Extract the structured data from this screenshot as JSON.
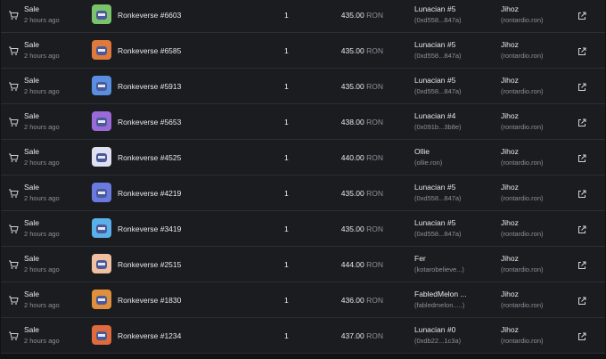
{
  "table": {
    "rows": [
      {
        "event": "Sale",
        "time": "2 hours ago",
        "item": "Ronkeverse #6603",
        "quantity": 1,
        "price": "435.00",
        "currency": "RON",
        "from": {
          "name": "Lunacian #5",
          "address": "(0xd558...847a)"
        },
        "to": {
          "name": "Jihoz",
          "address": "(rontardio.ron)"
        }
      },
      {
        "event": "Sale",
        "time": "2 hours ago",
        "item": "Ronkeverse #6585",
        "quantity": 1,
        "price": "435.00",
        "currency": "RON",
        "from": {
          "name": "Lunacian #5",
          "address": "(0xd558...847a)"
        },
        "to": {
          "name": "Jihoz",
          "address": "(rontardio.ron)"
        }
      },
      {
        "event": "Sale",
        "time": "2 hours ago",
        "item": "Ronkeverse #5913",
        "quantity": 1,
        "price": "435.00",
        "currency": "RON",
        "from": {
          "name": "Lunacian #5",
          "address": "(0xd558...847a)"
        },
        "to": {
          "name": "Jihoz",
          "address": "(rontardio.ron)"
        }
      },
      {
        "event": "Sale",
        "time": "2 hours ago",
        "item": "Ronkeverse #5653",
        "quantity": 1,
        "price": "438.00",
        "currency": "RON",
        "from": {
          "name": "Lunacian #4",
          "address": "(0x091b...3b8e)"
        },
        "to": {
          "name": "Jihoz",
          "address": "(rontardio.ron)"
        }
      },
      {
        "event": "Sale",
        "time": "2 hours ago",
        "item": "Ronkeverse #4525",
        "quantity": 1,
        "price": "440.00",
        "currency": "RON",
        "from": {
          "name": "Ollie",
          "address": "(ollie.ron)"
        },
        "to": {
          "name": "Jihoz",
          "address": "(rontardio.ron)"
        }
      },
      {
        "event": "Sale",
        "time": "2 hours ago",
        "item": "Ronkeverse #4219",
        "quantity": 1,
        "price": "435.00",
        "currency": "RON",
        "from": {
          "name": "Lunacian #5",
          "address": "(0xd558...847a)"
        },
        "to": {
          "name": "Jihoz",
          "address": "(rontardio.ron)"
        }
      },
      {
        "event": "Sale",
        "time": "2 hours ago",
        "item": "Ronkeverse #3419",
        "quantity": 1,
        "price": "435.00",
        "currency": "RON",
        "from": {
          "name": "Lunacian #5",
          "address": "(0xd558...847a)"
        },
        "to": {
          "name": "Jihoz",
          "address": "(rontardio.ron)"
        }
      },
      {
        "event": "Sale",
        "time": "2 hours ago",
        "item": "Ronkeverse #2515",
        "quantity": 1,
        "price": "444.00",
        "currency": "RON",
        "from": {
          "name": "Fer",
          "address": "(kotarobelieve...)"
        },
        "to": {
          "name": "Jihoz",
          "address": "(rontardio.ron)"
        }
      },
      {
        "event": "Sale",
        "time": "2 hours ago",
        "item": "Ronkeverse #1830",
        "quantity": 1,
        "price": "436.00",
        "currency": "RON",
        "from": {
          "name": "FabledMelon ...",
          "address": "(fabledmelon.....)"
        },
        "to": {
          "name": "Jihoz",
          "address": "(rontardio.ron)"
        }
      },
      {
        "event": "Sale",
        "time": "2 hours ago",
        "item": "Ronkeverse #1234",
        "quantity": 1,
        "price": "437.00",
        "currency": "RON",
        "from": {
          "name": "Lunacian #0",
          "address": "(0xdb22...1c3a)"
        },
        "to": {
          "name": "Jihoz",
          "address": "(rontardio.ron)"
        }
      }
    ]
  }
}
